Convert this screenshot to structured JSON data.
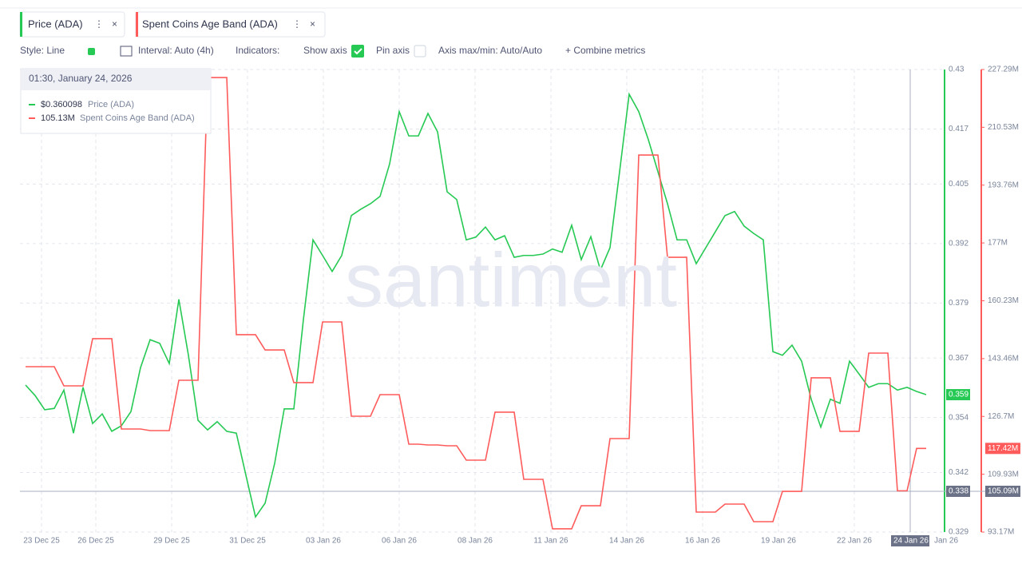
{
  "toolbar": {
    "metrics": [
      "Price (ADA)",
      "Spent Coins Age Band (ADA)"
    ],
    "style": "Style: Line",
    "interval": "Interval: Auto (4h)",
    "indicators": "Indicators:",
    "show_axis": "Show axis",
    "pin_axis": "Pin axis",
    "axis_maxmin": "Axis max/min: Auto/Auto",
    "combine": "+ Combine metrics"
  },
  "tooltip": {
    "time": "01:30, January 24, 2026",
    "rows": [
      {
        "value": "$0.360098",
        "name": "Price (ADA)"
      },
      {
        "value": "105.13M",
        "name": "Spent Coins Age Band (ADA)"
      }
    ]
  },
  "watermark": "santiment",
  "chart_data": {
    "type": "line",
    "x_labels": [
      "23 Dec 25",
      "26 Dec 25",
      "29 Dec 25",
      "31 Dec 25",
      "03 Jan 26",
      "06 Jan 26",
      "08 Jan 26",
      "11 Jan 26",
      "14 Jan 26",
      "16 Jan 26",
      "19 Jan 26",
      "22 Jan 26",
      "Jan 26"
    ],
    "crosshair": {
      "x_label": "24 Jan 26",
      "y_label": "0.338",
      "y2_label": "105.09M"
    },
    "ylim": [
      0.329,
      0.43
    ],
    "yticks": [
      0.43,
      0.417,
      0.405,
      0.392,
      0.379,
      0.367,
      0.354,
      0.342,
      0.329
    ],
    "y2lim": [
      93.17,
      227.29
    ],
    "y2ticks": [
      {
        "value": 227.29,
        "label": "227.29M"
      },
      {
        "value": 210.53,
        "label": "210.53M"
      },
      {
        "value": 193.76,
        "label": "193.76M"
      },
      {
        "value": 177,
        "label": "177M"
      },
      {
        "value": 160.23,
        "label": "160.23M"
      },
      {
        "value": 143.46,
        "label": "143.46M"
      },
      {
        "value": 126.7,
        "label": "126.7M"
      },
      {
        "value": 109.93,
        "label": "109.93M"
      },
      {
        "value": 93.17,
        "label": "93.17M"
      }
    ],
    "grid": true,
    "series": [
      {
        "name": "Price (ADA)",
        "color": "#26c953",
        "last_label": "0.359",
        "values": [
          0.3611,
          0.3588,
          0.3557,
          0.356,
          0.36,
          0.3506,
          0.3606,
          0.3527,
          0.3548,
          0.351,
          0.3522,
          0.3553,
          0.3649,
          0.371,
          0.3702,
          0.3658,
          0.3798,
          0.3676,
          0.3534,
          0.3513,
          0.3531,
          0.351,
          0.3506,
          0.3414,
          0.3323,
          0.3353,
          0.344,
          0.3559,
          0.3559,
          0.3754,
          0.3928,
          0.3894,
          0.3859,
          0.3894,
          0.3981,
          0.3995,
          0.4007,
          0.4023,
          0.4094,
          0.4208,
          0.4155,
          0.4155,
          0.4204,
          0.4164,
          0.4033,
          0.4016,
          0.3928,
          0.3934,
          0.3956,
          0.3928,
          0.3937,
          0.389,
          0.3894,
          0.3894,
          0.3897,
          0.3908,
          0.3901,
          0.396,
          0.3885,
          0.3935,
          0.3862,
          0.3911,
          0.4077,
          0.4246,
          0.4208,
          0.4147,
          0.4077,
          0.4007,
          0.3928,
          0.3928,
          0.3876,
          0.3911,
          0.3946,
          0.3981,
          0.399,
          0.3958,
          0.3942,
          0.3928,
          0.3684,
          0.3676,
          0.3698,
          0.3663,
          0.358,
          0.3519,
          0.358,
          0.3571,
          0.3663,
          0.3635,
          0.3606,
          0.3614,
          0.3614,
          0.36,
          0.3606,
          0.3597,
          0.359
        ]
      },
      {
        "name": "Spent Coins Age Band (ADA)",
        "color": "#ff5b5b",
        "axis": "y2",
        "last_label": "117.42M",
        "values": [
          141.12,
          141.12,
          141.12,
          141.12,
          135.56,
          135.56,
          135.56,
          149.23,
          149.23,
          149.23,
          123.05,
          123.05,
          123.05,
          122.59,
          122.59,
          122.59,
          137.18,
          137.18,
          137.18,
          224.97,
          224.97,
          224.97,
          150.39,
          150.39,
          150.39,
          145.98,
          145.98,
          145.98,
          136.49,
          136.49,
          136.49,
          154.09,
          154.09,
          154.09,
          126.76,
          126.76,
          126.76,
          133.01,
          133.01,
          133.01,
          118.65,
          118.65,
          118.42,
          118.42,
          118.19,
          118.19,
          114.02,
          114.02,
          114.02,
          127.92,
          127.92,
          127.92,
          108.46,
          108.46,
          108.46,
          94.1,
          94.1,
          94.1,
          100.81,
          100.81,
          100.81,
          120.27,
          120.27,
          120.27,
          202.5,
          202.5,
          202.5,
          172.85,
          172.85,
          172.85,
          98.96,
          98.96,
          98.96,
          101.28,
          101.28,
          101.28,
          96.18,
          96.18,
          96.18,
          104.98,
          104.98,
          104.98,
          137.88,
          137.88,
          137.88,
          122.36,
          122.36,
          122.36,
          145.06,
          145.06,
          145.06,
          105.13,
          105.13,
          117.42,
          117.42
        ]
      }
    ]
  }
}
